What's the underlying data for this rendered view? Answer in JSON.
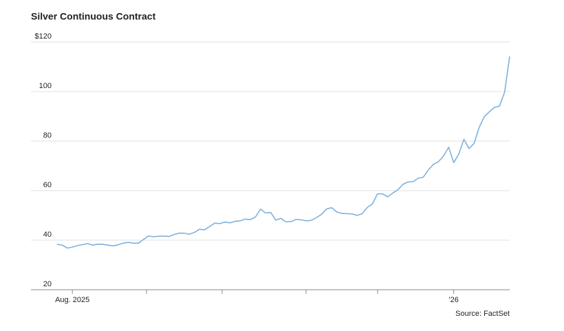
{
  "chart_data": {
    "type": "line",
    "title": "Silver Continuous Contract",
    "source": "Source: FactSet",
    "categories": [
      null,
      null,
      null,
      "Aug. 2025",
      null,
      null,
      null,
      null,
      null,
      null,
      null,
      null,
      null,
      null,
      null,
      null,
      null,
      null,
      null,
      null,
      null,
      null,
      null,
      null,
      null,
      null,
      null,
      null,
      null,
      null,
      null,
      null,
      null,
      null,
      null,
      null,
      null,
      null,
      null,
      null,
      null,
      null,
      null,
      null,
      null,
      null,
      null,
      null,
      null,
      null,
      null,
      null,
      null,
      null,
      null,
      null,
      null,
      null,
      null,
      null,
      null,
      null,
      null,
      null,
      null,
      null,
      null,
      null,
      null,
      null,
      null,
      null,
      null,
      null,
      null,
      null,
      null,
      null,
      "'26",
      null,
      null,
      null,
      null,
      null,
      null,
      null,
      null,
      null,
      null,
      null
    ],
    "series": [
      {
        "name": "Silver",
        "color": "#7fb1dc",
        "values": [
          38.3,
          38,
          36.8,
          37.2,
          37.8,
          38.2,
          38.6,
          38,
          38.4,
          38.3,
          38,
          37.7,
          38.1,
          38.8,
          39.1,
          38.8,
          38.8,
          40.3,
          41.7,
          41.4,
          41.6,
          41.6,
          41.5,
          42.3,
          42.8,
          42.8,
          42.4,
          43.1,
          44.4,
          44.2,
          45.5,
          46.9,
          46.7,
          47.3,
          47,
          47.6,
          47.8,
          48.5,
          48.3,
          49.3,
          52.5,
          51,
          51.2,
          48.1,
          48.8,
          47.4,
          47.5,
          48.4,
          48.2,
          47.8,
          48,
          49.1,
          50.4,
          52.6,
          53.1,
          51.4,
          50.8,
          50.7,
          50.6,
          50,
          50.7,
          53.2,
          54.6,
          58.7,
          58.7,
          57.5,
          59,
          60.3,
          62.5,
          63.5,
          63.6,
          65,
          65.4,
          68.3,
          70.6,
          71.7,
          74,
          77.5,
          71.3,
          74.8,
          80.7,
          77,
          79,
          85.5,
          89.8,
          91.8,
          93.6,
          94.1,
          99.7,
          114.2
        ]
      }
    ],
    "ylim": [
      20,
      120
    ],
    "yticks": [
      20,
      40,
      60,
      80,
      100,
      {
        "value": 120,
        "label": "$120"
      }
    ],
    "grid": true
  }
}
